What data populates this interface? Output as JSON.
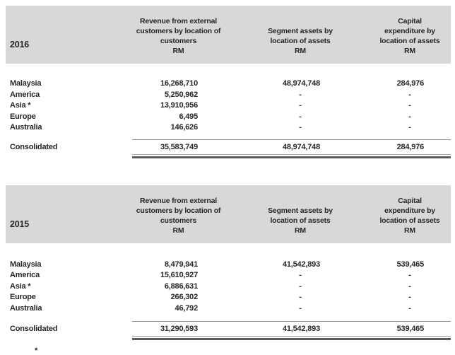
{
  "document": {
    "footnote_marker": "*"
  },
  "colors": {
    "header_bg": "#d8d8d8",
    "text": "#272727",
    "rule_light": "#a6a6a6",
    "rule_dark": "#5c5c5c"
  },
  "sections": [
    {
      "year": "2016",
      "currency_label": "RM",
      "col_headers": [
        "Revenue from external customers by location of customers",
        "Segment assets by location of assets",
        "Capital expenditure by location of assets"
      ],
      "rows": [
        {
          "label": "Malaysia",
          "revenue": "16,268,710",
          "assets": "48,974,748",
          "capex": "284,976"
        },
        {
          "label": "America",
          "revenue": "5,250,962",
          "assets": "-",
          "capex": "-"
        },
        {
          "label": "Asia *",
          "revenue": "13,910,956",
          "assets": "-",
          "capex": "-"
        },
        {
          "label": "Europe",
          "revenue": "6,495",
          "assets": "-",
          "capex": "-"
        },
        {
          "label": "Australia",
          "revenue": "146,626",
          "assets": "-",
          "capex": "-"
        }
      ],
      "total": {
        "label": "Consolidated",
        "revenue": "35,583,749",
        "assets": "48,974,748",
        "capex": "284,976"
      }
    },
    {
      "year": "2015",
      "currency_label": "RM",
      "col_headers": [
        "Revenue from external customers by location of customers",
        "Segment assets by location of assets",
        "Capital expenditure by location of assets"
      ],
      "rows": [
        {
          "label": "Malaysia",
          "revenue": "8,479,941",
          "assets": "41,542,893",
          "capex": "539,465"
        },
        {
          "label": "America",
          "revenue": "15,610,927",
          "assets": "-",
          "capex": "-"
        },
        {
          "label": "Asia *",
          "revenue": "6,886,631",
          "assets": "-",
          "capex": "-"
        },
        {
          "label": "Europe",
          "revenue": "266,302",
          "assets": "-",
          "capex": "-"
        },
        {
          "label": "Australia",
          "revenue": "46,792",
          "assets": "-",
          "capex": "-"
        }
      ],
      "total": {
        "label": "Consolidated",
        "revenue": "31,290,593",
        "assets": "41,542,893",
        "capex": "539,465"
      }
    }
  ]
}
